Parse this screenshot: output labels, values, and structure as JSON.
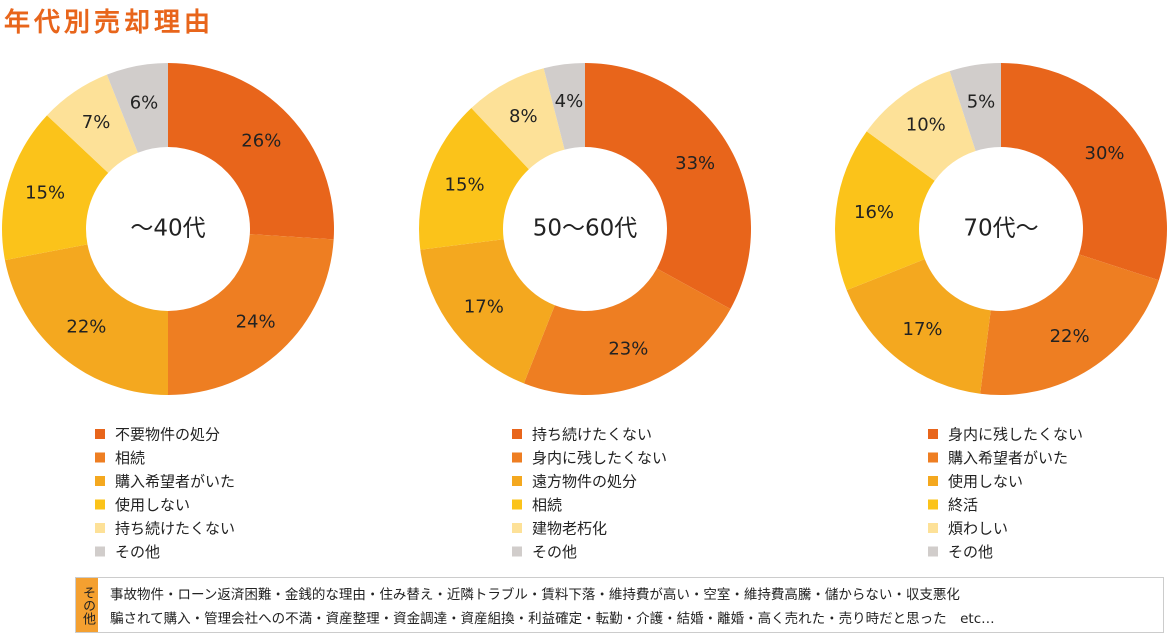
{
  "title": "年代別売却理由",
  "chart_data": [
    {
      "type": "pie",
      "center_label": "～40代",
      "categories": [
        "不要物件の処分",
        "相続",
        "購入希望者がいた",
        "使用しない",
        "持ち続けたくない",
        "その他"
      ],
      "values": [
        26,
        24,
        22,
        15,
        7,
        6
      ],
      "value_labels": [
        "26%",
        "24%",
        "22%",
        "15%",
        "7%",
        "6%"
      ],
      "colors": [
        "#e8651b",
        "#ee7e22",
        "#f4a81f",
        "#fbc31a",
        "#fde198",
        "#d1cdcb"
      ]
    },
    {
      "type": "pie",
      "center_label": "50～60代",
      "categories": [
        "持ち続けたくない",
        "身内に残したくない",
        "遠方物件の処分",
        "相続",
        "建物老朽化",
        "その他"
      ],
      "values": [
        33,
        23,
        17,
        15,
        8,
        4
      ],
      "value_labels": [
        "33%",
        "23%",
        "17%",
        "15%",
        "8%",
        "4%"
      ],
      "colors": [
        "#e8651b",
        "#ee7e22",
        "#f4a81f",
        "#fbc31a",
        "#fde198",
        "#d1cdcb"
      ]
    },
    {
      "type": "pie",
      "center_label": "70代～",
      "categories": [
        "身内に残したくない",
        "購入希望者がいた",
        "使用しない",
        "終活",
        "煩わしい",
        "その他"
      ],
      "values": [
        30,
        22,
        17,
        16,
        10,
        5
      ],
      "value_labels": [
        "30%",
        "22%",
        "17%",
        "16%",
        "10%",
        "5%"
      ],
      "colors": [
        "#e8651b",
        "#ee7e22",
        "#f4a81f",
        "#fbc31a",
        "#fde198",
        "#d1cdcb"
      ]
    }
  ],
  "note": {
    "label": "その他",
    "lines": [
      "事故物件・ローン返済困難・金銭的な理由・住み替え・近隣トラブル・賃料下落・維持費が高い・空室・維持費高騰・儲からない・収支悪化",
      "騙されて購入・管理会社への不満・資産整理・資金調達・資産組換・利益確定・転勤・介護・結婚・離婚・高く売れた・売り時だと思った　etc…"
    ]
  }
}
